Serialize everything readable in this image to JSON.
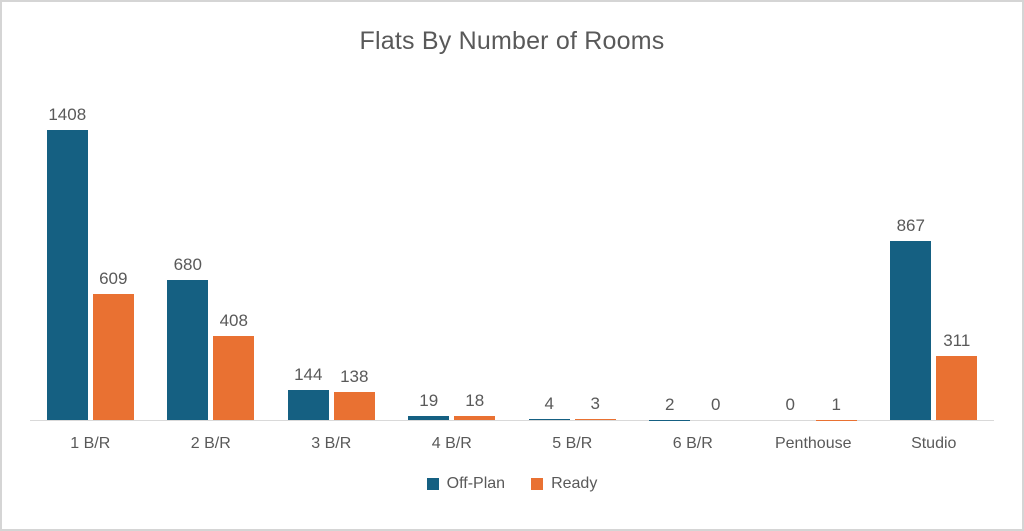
{
  "title": "Flats By Number of Rooms",
  "colors": {
    "off_plan": "#156082",
    "ready": "#e97132",
    "text": "#595959",
    "axis_line": "#d9d9d9",
    "frame_border": "#d5d5d5",
    "background": "#ffffff"
  },
  "legend": {
    "items": [
      {
        "label": "Off-Plan",
        "color": "#156082"
      },
      {
        "label": "Ready",
        "color": "#e97132"
      }
    ],
    "position": "bottom"
  },
  "chart_data": {
    "type": "bar",
    "title": "Flats By Number of Rooms",
    "categories": [
      "1 B/R",
      "2 B/R",
      "3 B/R",
      "4 B/R",
      "5 B/R",
      "6 B/R",
      "Penthouse",
      "Studio"
    ],
    "series": [
      {
        "name": "Off-Plan",
        "color": "#156082",
        "values": [
          1408,
          680,
          144,
          19,
          4,
          2,
          0,
          867
        ]
      },
      {
        "name": "Ready",
        "color": "#e97132",
        "values": [
          609,
          408,
          138,
          18,
          3,
          0,
          1,
          311
        ]
      }
    ],
    "xlabel": "",
    "ylabel": "",
    "ylim": [
      0,
      1600
    ],
    "grid": false,
    "legend_position": "bottom",
    "data_labels": true
  }
}
